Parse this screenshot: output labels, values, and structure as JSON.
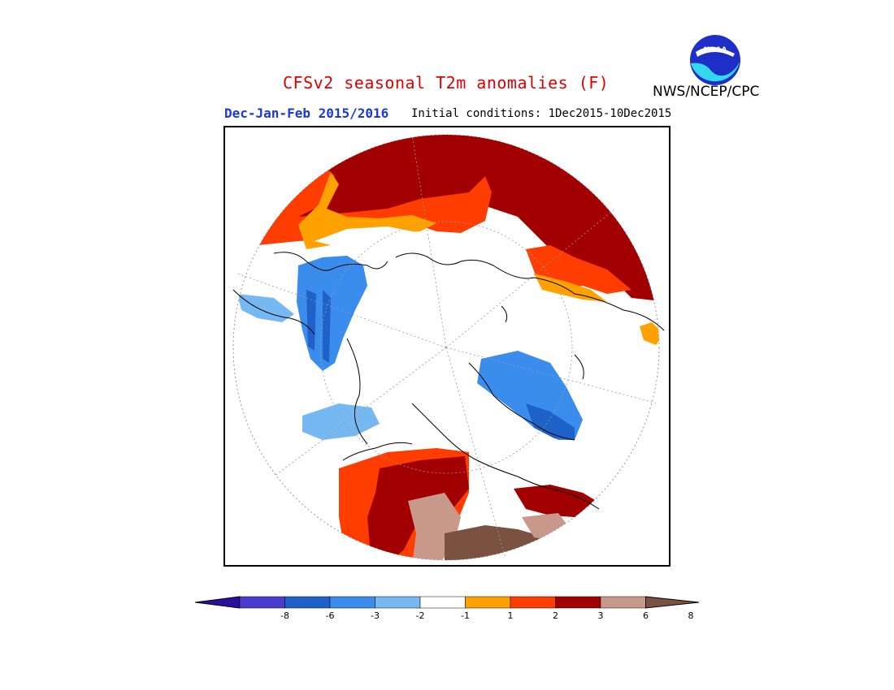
{
  "title": "CFSv2 seasonal T2m anomalies (F)",
  "period": "Dec-Jan-Feb 2015/2016",
  "initial_conditions": "Initial conditions: 1Dec2015-10Dec2015",
  "agency": "NWS/NCEP/CPC",
  "logo_text": "NOAA",
  "colorbar": {
    "labels": [
      "-8",
      "-6",
      "-3",
      "-2",
      "-1",
      "1",
      "2",
      "3",
      "6",
      "8"
    ],
    "colors": [
      "#2a0c9e",
      "#4b3ccf",
      "#1d61c9",
      "#3b8ded",
      "#76b8f2",
      "#ffffff",
      "#ffa200",
      "#ff3d00",
      "#a20000",
      "#c8988a",
      "#7b5142"
    ]
  },
  "map": {
    "projection": "north-polar-stereographic",
    "colors": {
      "dark_red": "#a20000",
      "red": "#ff3d00",
      "orange": "#ffa200",
      "light_blue": "#76b8f2",
      "blue": "#3b8ded",
      "mid_blue": "#1d61c9",
      "light_brown": "#c8988a",
      "brown": "#7b5142"
    }
  }
}
